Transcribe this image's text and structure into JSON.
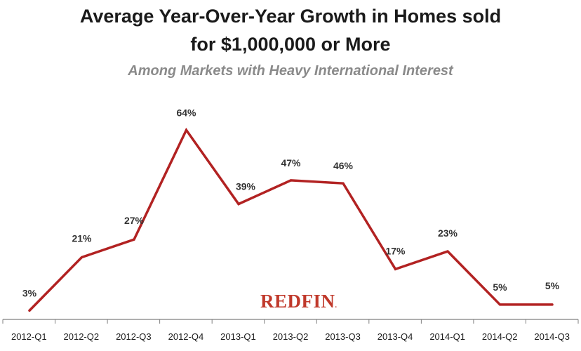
{
  "chart_data": {
    "type": "line",
    "title": "Average Year-Over-Year Growth in Homes sold",
    "title_line2": "for $1,000,000 or More",
    "subtitle": "Among Markets with Heavy International Interest",
    "categories": [
      "2012-Q1",
      "2012-Q2",
      "2012-Q3",
      "2012-Q4",
      "2013-Q1",
      "2013-Q2",
      "2013-Q3",
      "2013-Q4",
      "2014-Q1",
      "2014-Q2",
      "2014-Q3"
    ],
    "values": [
      3,
      21,
      27,
      64,
      39,
      47,
      46,
      17,
      23,
      5,
      5
    ],
    "data_labels": [
      "3%",
      "21%",
      "27%",
      "64%",
      "39%",
      "47%",
      "46%",
      "17%",
      "23%",
      "5%",
      "5%"
    ],
    "ylim": [
      0,
      70
    ],
    "grid": false,
    "legend": "none",
    "line_color": "#b22222"
  },
  "watermark": {
    "brand": "REDFIN",
    "mark": ".",
    "color": "#c0392b"
  }
}
